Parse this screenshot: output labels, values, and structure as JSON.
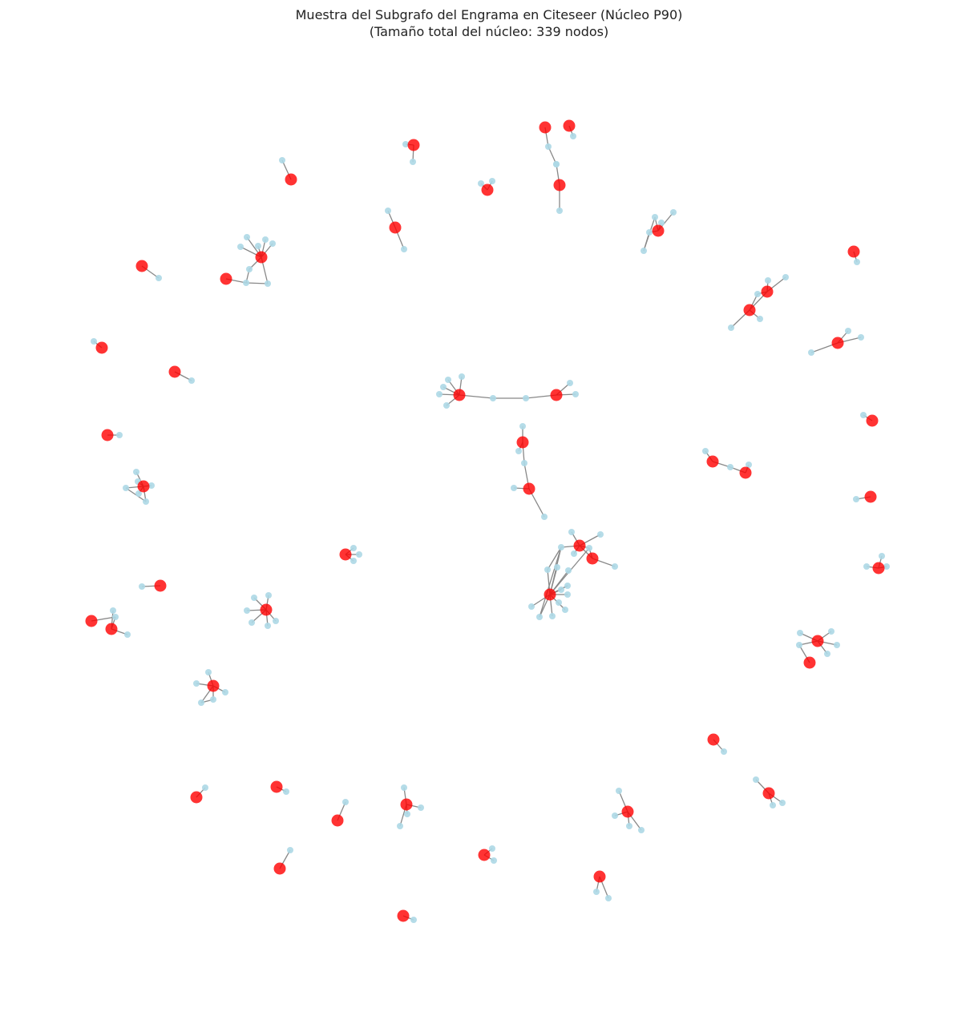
{
  "figure": {
    "title_line1": "Muestra del Subgrafo del Engrama en Citeseer (Núcleo P90)",
    "title_line2": "(Tamaño total del núcleo: 339 nodos)"
  },
  "colors": {
    "core_node": "#ff0000",
    "neighbor_node": "#add8e6",
    "edge": "#888888"
  }
}
